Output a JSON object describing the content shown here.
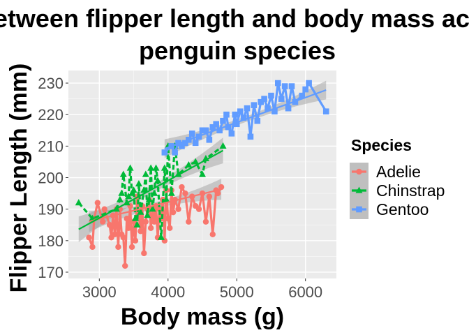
{
  "chart_data": {
    "type": "line",
    "title": [
      "Relationship between flipper length and body mass across",
      "penguin species"
    ],
    "xlabel": "Body mass (g)",
    "ylabel": "Flipper Length (mm)",
    "xlim": [
      2550,
      6450
    ],
    "ylim": [
      168,
      234
    ],
    "xticks": [
      3000,
      4000,
      5000,
      6000
    ],
    "yticks": [
      170,
      180,
      190,
      200,
      210,
      220,
      230
    ],
    "grid": true,
    "legend": {
      "title": "Species",
      "position": "right"
    },
    "series": [
      {
        "name": "Adelie",
        "color": "#F8766D",
        "marker": "circle",
        "points": [
          [
            2850,
            181
          ],
          [
            2900,
            178
          ],
          [
            2925,
            187
          ],
          [
            2975,
            192
          ],
          [
            3050,
            186
          ],
          [
            3075,
            190
          ],
          [
            3150,
            185
          ],
          [
            3175,
            181
          ],
          [
            3200,
            188
          ],
          [
            3225,
            182
          ],
          [
            3250,
            190
          ],
          [
            3275,
            178
          ],
          [
            3300,
            190
          ],
          [
            3325,
            182
          ],
          [
            3350,
            181
          ],
          [
            3375,
            172
          ],
          [
            3400,
            187
          ],
          [
            3425,
            184
          ],
          [
            3450,
            191
          ],
          [
            3475,
            178
          ],
          [
            3500,
            186
          ],
          [
            3525,
            180
          ],
          [
            3550,
            194
          ],
          [
            3575,
            188
          ],
          [
            3600,
            183
          ],
          [
            3625,
            191
          ],
          [
            3650,
            176
          ],
          [
            3675,
            186
          ],
          [
            3700,
            190
          ],
          [
            3725,
            193
          ],
          [
            3750,
            184
          ],
          [
            3775,
            190
          ],
          [
            3800,
            186
          ],
          [
            3825,
            191
          ],
          [
            3850,
            181
          ],
          [
            3875,
            190
          ],
          [
            3900,
            187
          ],
          [
            3925,
            193
          ],
          [
            3950,
            180
          ],
          [
            3975,
            196
          ],
          [
            4000,
            187
          ],
          [
            4025,
            184
          ],
          [
            4050,
            196
          ],
          [
            4075,
            189
          ],
          [
            4100,
            193
          ],
          [
            4150,
            190
          ],
          [
            4200,
            197
          ],
          [
            4250,
            195
          ],
          [
            4300,
            186
          ],
          [
            4350,
            194
          ],
          [
            4400,
            191
          ],
          [
            4450,
            190
          ],
          [
            4500,
            195
          ],
          [
            4550,
            186
          ],
          [
            4600,
            194
          ],
          [
            4650,
            182
          ],
          [
            4700,
            196
          ],
          [
            4725,
            195
          ],
          [
            4775,
            197
          ]
        ],
        "fit": {
          "x": [
            2850,
            4775
          ],
          "y": [
            186.1,
            196.3
          ],
          "ci": 1.8
        }
      },
      {
        "name": "Chinstrap",
        "color": "#00BA38",
        "marker": "triangle",
        "points": [
          [
            2700,
            192
          ],
          [
            2900,
            187
          ],
          [
            3250,
            190
          ],
          [
            3300,
            193
          ],
          [
            3325,
            195
          ],
          [
            3350,
            201
          ],
          [
            3400,
            192
          ],
          [
            3425,
            194
          ],
          [
            3450,
            203
          ],
          [
            3475,
            195
          ],
          [
            3500,
            196
          ],
          [
            3525,
            187
          ],
          [
            3550,
            185
          ],
          [
            3575,
            198
          ],
          [
            3600,
            189
          ],
          [
            3650,
            196
          ],
          [
            3675,
            201
          ],
          [
            3700,
            188
          ],
          [
            3725,
            193
          ],
          [
            3750,
            203
          ],
          [
            3775,
            190
          ],
          [
            3800,
            195
          ],
          [
            3825,
            203
          ],
          [
            3850,
            199
          ],
          [
            3900,
            181
          ],
          [
            3950,
            203
          ],
          [
            3975,
            193
          ],
          [
            4000,
            210
          ],
          [
            4050,
            195
          ],
          [
            4100,
            210
          ],
          [
            4150,
            201
          ],
          [
            4300,
            204
          ],
          [
            4400,
            205
          ],
          [
            4500,
            201
          ],
          [
            4550,
            206
          ],
          [
            4800,
            210
          ]
        ],
        "fit": {
          "x": [
            2700,
            4800
          ],
          "y": [
            183.6,
            208.6
          ],
          "ci": 2.2
        }
      },
      {
        "name": "Gentoo",
        "color": "#619CFF",
        "marker": "square",
        "points": [
          [
            3950,
            208
          ],
          [
            4050,
            210
          ],
          [
            4100,
            208
          ],
          [
            4150,
            211
          ],
          [
            4200,
            210
          ],
          [
            4250,
            211
          ],
          [
            4300,
            212
          ],
          [
            4350,
            214
          ],
          [
            4400,
            211
          ],
          [
            4450,
            213
          ],
          [
            4500,
            215
          ],
          [
            4550,
            215
          ],
          [
            4600,
            212
          ],
          [
            4650,
            216
          ],
          [
            4700,
            217
          ],
          [
            4750,
            215
          ],
          [
            4800,
            218
          ],
          [
            4850,
            220
          ],
          [
            4875,
            216
          ],
          [
            4925,
            214
          ],
          [
            4975,
            220
          ],
          [
            5000,
            217
          ],
          [
            5050,
            221
          ],
          [
            5100,
            219
          ],
          [
            5150,
            222
          ],
          [
            5200,
            213
          ],
          [
            5250,
            223
          ],
          [
            5300,
            218
          ],
          [
            5350,
            224
          ],
          [
            5400,
            225
          ],
          [
            5450,
            222
          ],
          [
            5500,
            226
          ],
          [
            5550,
            221
          ],
          [
            5600,
            230
          ],
          [
            5650,
            225
          ],
          [
            5700,
            229
          ],
          [
            5750,
            222
          ],
          [
            5800,
            229
          ],
          [
            5850,
            224
          ],
          [
            5950,
            226
          ],
          [
            6000,
            228
          ],
          [
            6050,
            230
          ],
          [
            6300,
            221
          ]
        ],
        "fit": {
          "x": [
            3950,
            6300
          ],
          "y": [
            209.2,
            227.8
          ],
          "ci": 1.6
        }
      }
    ]
  }
}
